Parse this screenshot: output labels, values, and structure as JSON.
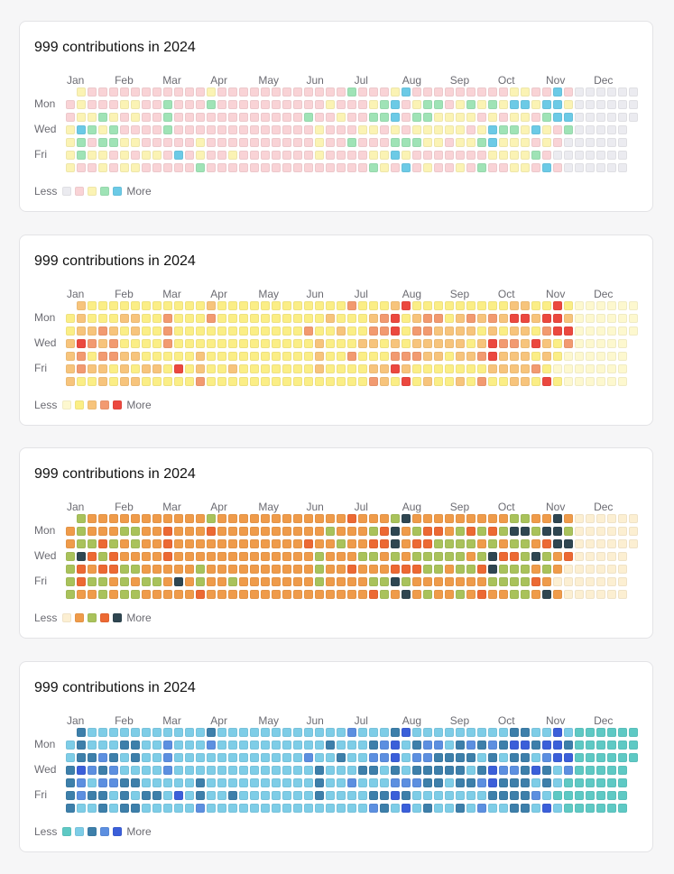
{
  "chart_data": {
    "type": "heatmap",
    "title": "999 contributions in 2024",
    "months": [
      "Jan",
      "Feb",
      "Mar",
      "Apr",
      "May",
      "Jun",
      "Jul",
      "Aug",
      "Sep",
      "Oct",
      "Nov",
      "Dec"
    ],
    "day_labels": [
      {
        "row": 1,
        "label": "Mon"
      },
      {
        "row": 3,
        "label": "Wed"
      },
      {
        "row": 5,
        "label": "Fri"
      }
    ],
    "legend": {
      "less": "Less",
      "more": "More"
    },
    "levels_by_weekday_row": [
      ".2111111111112111111111111311124111111111221141000000",
      "12111221131113111111111121112341233123232442442000000",
      "12232121131111111111113112113341332222121221344000000",
      "24323111131111111111111211122121222221243324213000000.",
      "23133221111121111111111211311133322122342221210000000.",
      "23221212214121121111111211112242111111122223100000 0.",
      "21121221111131111111111111113214121121311221410000000."
    ],
    "palettes": [
      [
        "#ebebf0",
        "#f9d3d6",
        "#fbf3b4",
        "#9fe3b6",
        "#6ccae6"
      ],
      [
        "#fdf8cf",
        "#fbee86",
        "#f7c47c",
        "#f29a70",
        "#eb483f"
      ],
      [
        "#fcefd2",
        "#ef9b4a",
        "#a9c25b",
        "#ec6933",
        "#2f4651"
      ],
      [
        "#5ec9c4",
        "#7ecde7",
        "#3d7faa",
        "#5c8fe0",
        "#3b5fd9"
      ]
    ]
  }
}
